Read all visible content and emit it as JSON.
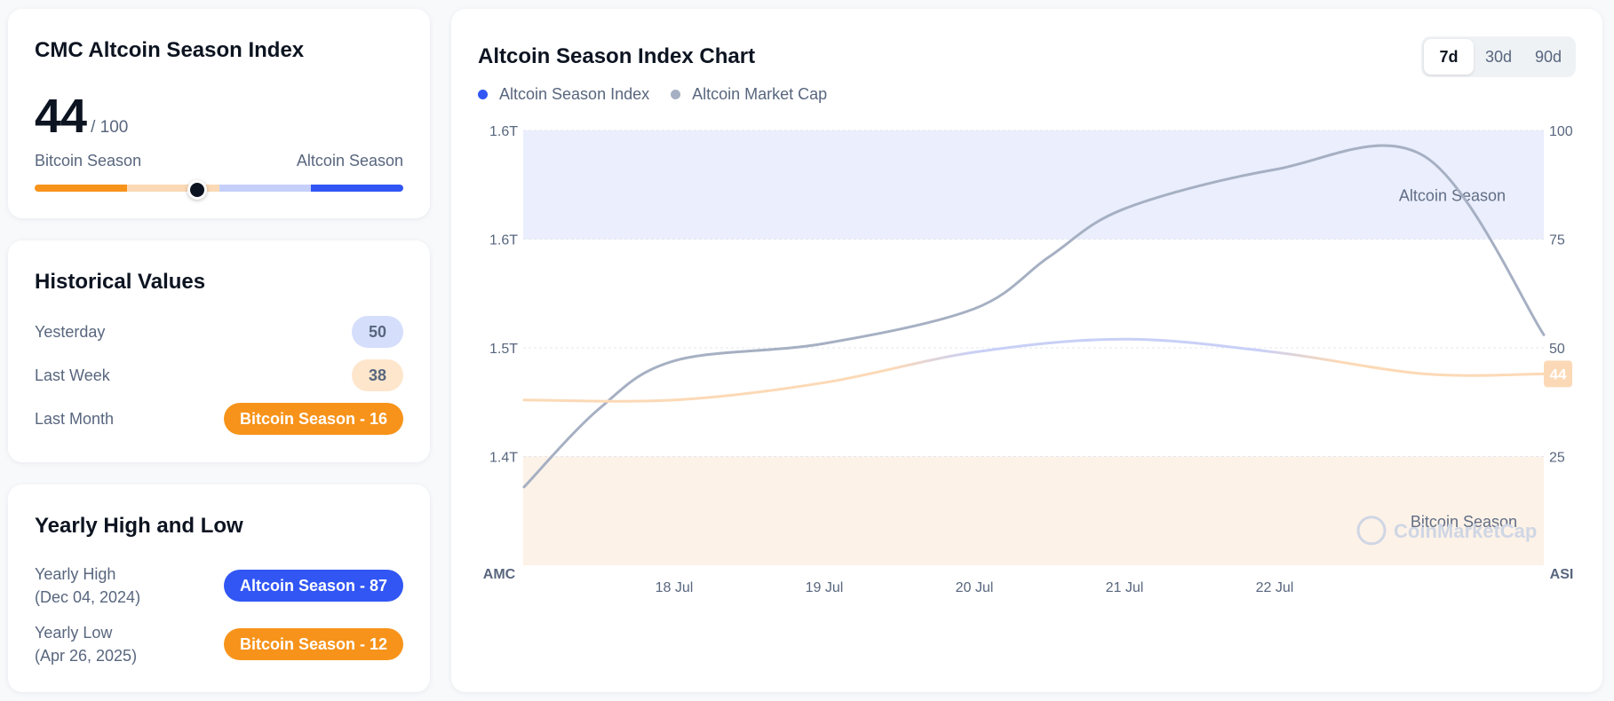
{
  "index_card": {
    "title": "CMC Altcoin Season Index",
    "value": "44",
    "max": "/ 100",
    "left_label": "Bitcoin Season",
    "right_label": "Altcoin Season",
    "indicator_value": 44
  },
  "historical": {
    "title": "Historical Values",
    "rows": [
      {
        "label": "Yesterday",
        "value": "50"
      },
      {
        "label": "Last Week",
        "value": "38"
      },
      {
        "label": "Last Month",
        "value": "Bitcoin Season - 16"
      }
    ]
  },
  "yearly": {
    "title": "Yearly High and Low",
    "high_label": "Yearly High",
    "high_date": "(Dec 04, 2024)",
    "high_value": "Altcoin Season - 87",
    "low_label": "Yearly Low",
    "low_date": "(Apr 26, 2025)",
    "low_value": "Bitcoin Season - 12"
  },
  "chart": {
    "title": "Altcoin Season Index Chart",
    "ranges": [
      "7d",
      "30d",
      "90d"
    ],
    "active_range": "7d",
    "legend": [
      "Altcoin Season Index",
      "Altcoin Market Cap"
    ],
    "zone_top_label": "Altcoin Season",
    "zone_bottom_label": "Bitcoin Season",
    "watermark": "CoinMarketCap",
    "left_axis_name": "AMC",
    "right_axis_name": "ASI",
    "current_value_badge": "44",
    "colors": {
      "index_blue": "#3156f4",
      "market_cap_gray": "#a6b0c3",
      "bitcoin_orange": "#f7931a",
      "altcoin_zone": "#eaeefd",
      "bitcoin_zone": "#fdf2e8"
    }
  },
  "chart_data": {
    "type": "line",
    "x_ticks": [
      "18 Jul",
      "19 Jul",
      "20 Jul",
      "21 Jul",
      "22 Jul"
    ],
    "left_axis": {
      "name": "AMC",
      "ticks": [
        "1.6T",
        "1.6T",
        "1.5T",
        "1.4T"
      ]
    },
    "right_axis": {
      "name": "ASI",
      "ticks": [
        "100",
        "75",
        "50",
        "25"
      ],
      "ylim": [
        0,
        100
      ]
    },
    "series": [
      {
        "name": "Altcoin Season Index",
        "axis": "right",
        "x": [
          -1,
          0,
          1,
          2,
          3,
          4,
          5,
          5.8
        ],
        "y": [
          38,
          38,
          42,
          49,
          52,
          49,
          44,
          44
        ]
      },
      {
        "name": "Altcoin Market Cap",
        "axis": "left",
        "y_in_right_axis_units": true,
        "x": [
          -1,
          -0.5,
          0,
          1,
          2,
          2.5,
          3,
          4,
          5,
          5.8
        ],
        "y": [
          18,
          36,
          47,
          51,
          59,
          71,
          82,
          91,
          94,
          53
        ]
      }
    ],
    "zones": [
      {
        "label": "Altcoin Season",
        "from": 75,
        "to": 100
      },
      {
        "label": "Bitcoin Season",
        "from": 0,
        "to": 25
      }
    ],
    "grid": true
  }
}
